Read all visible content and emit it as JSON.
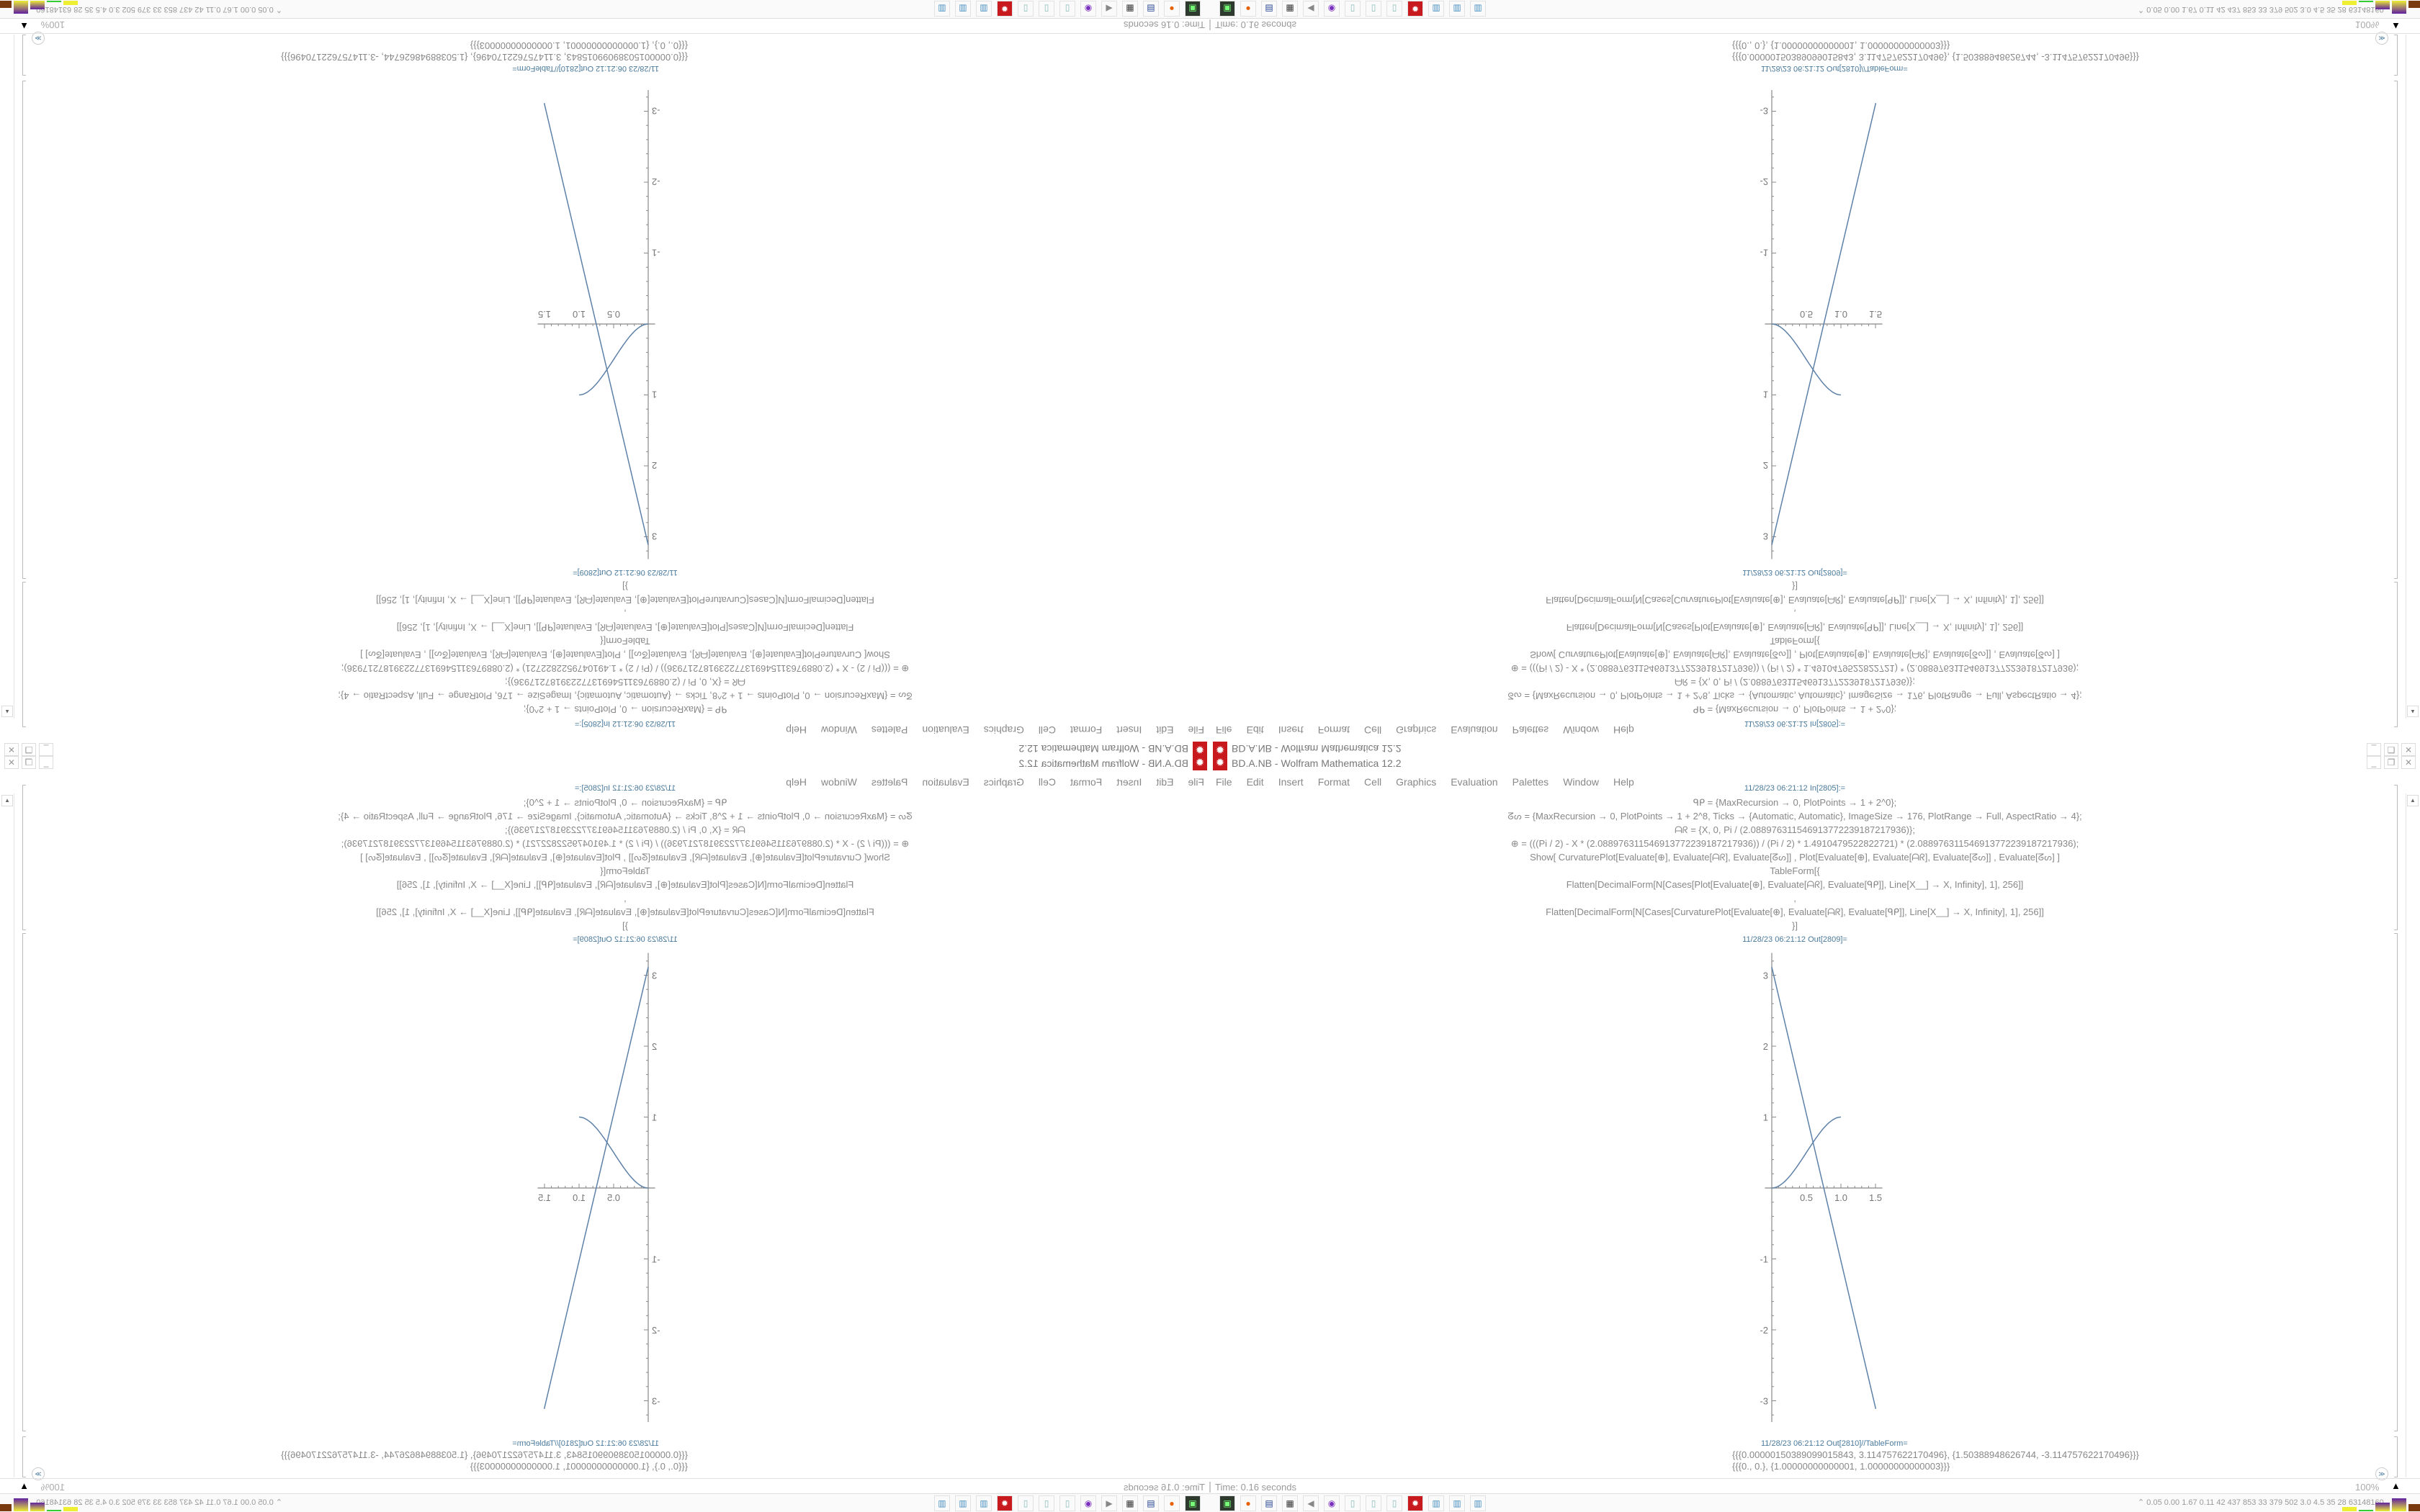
{
  "window": {
    "title": "BD.A.NB - Wolfram Mathematica 12.2",
    "app_icon": "mathematica-gear-icon",
    "controls": [
      "_",
      "❐",
      "✕"
    ]
  },
  "menu": [
    "File",
    "Edit",
    "Insert",
    "Format",
    "Cell",
    "Graphics",
    "Evaluation",
    "Palettes",
    "Window",
    "Help"
  ],
  "input_cell": {
    "label": "11/28/23 06:21:12 In[2805]:=",
    "lines": [
      "ᑫᑭ = {MaxRecursion → 0, PlotPoints → 1 + 2^0};",
      "ᘔᔕ = {MaxRecursion → 0, PlotPoints → 1 + 2^8, Ticks → {Automatic, Automatic}, ImageSize → 176, PlotRange → Full, AspectRatio → 4};",
      "ᗩᖇ = {X, 0, Pi / (2.0889763115469137722391872179­36)};",
      "⊕ = (((Pi / 2) - X * (2.088976311546913772239187217936)) / (Pi / 2) * 1.4910479522822721) * (2.088976311546913772239187217936);",
      "Show[   CurvaturePlot[Evaluate[⊕], Evaluate[ᗩᖇ], Evaluate[ᘔᔕ]]   ,   Plot[Evaluate[⊕], Evaluate[ᗩᖇ], Evaluate[ᘔᔕ]]   ,   Evaluate[ᘔᔕ]   ]",
      "TableForm[{",
      "Flatten[DecimalForm[N[Cases[Plot[Evaluate[⊕], Evaluate[ᗩᖇ], Evaluate[ᑫᑭ]], Line[X__] → X, Infinity], 1], 256]]",
      ",",
      "Flatten[DecimalForm[N[Cases[CurvaturePlot[Evaluate[⊕], Evaluate[ᗩᖇ], Evaluate[ᑫᑭ]], Line[X__] → X, Infinity], 1], 256]]",
      "}]"
    ]
  },
  "plot_cell": {
    "label": "11/28/23 06:21:12 Out[2809]="
  },
  "table_cell": {
    "label": "11/28/23 06:21:12 Out[2810]//TableForm=",
    "rows": [
      "{{{0.00000150389099015843, 3.114757622170496}, {1.50388948626744, -3.114757622170496}}}",
      "{{{0., 0.}, {1.00000000000001, 1.00000000000003}}}"
    ]
  },
  "chart_data": {
    "type": "line",
    "xlim": [
      0,
      1.5
    ],
    "ylim": [
      -3.114757622170496,
      3.114757622170496
    ],
    "x_ticks": [
      "0.5",
      "1.0",
      "1.5"
    ],
    "y_ticks": [
      "-3",
      "-2",
      "-1",
      "1",
      "2",
      "3"
    ],
    "series": [
      {
        "points": [
          [
            1.50389099015843e-06,
            3.114757622170496
          ],
          [
            1.50388948626744,
            -3.114757622170496
          ]
        ],
        "shape": "line"
      },
      {
        "points": [
          [
            0,
            0
          ],
          [
            1.00000000000001,
            1.00000000000003
          ]
        ],
        "shape": "s-curve"
      }
    ],
    "color": "#5e81a8"
  },
  "status": {
    "time": "Time: 0.16 seconds",
    "zoom": "100%"
  },
  "taskbar": {
    "icons": [
      "terminal-icon",
      "firefox-icon",
      "floppy-64-icon",
      "monitor-chart-icon",
      "speaker-icon",
      "owl-icon",
      "notepad-icon",
      "notepad-icon",
      "notepad-icon",
      "mathematica-icon",
      "calculator-icon",
      "calculator-icon",
      "calculator-icon"
    ],
    "stats": "0.05 0.00 1.67 0.11  42  437  853  33  379  502  3.0  4.5  35  28  63148160"
  }
}
